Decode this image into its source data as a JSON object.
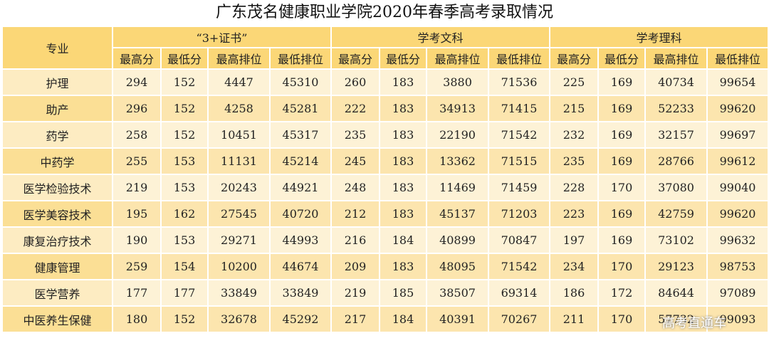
{
  "title": "广东茂名健康职业学院2020年春季高考录取情况",
  "table": {
    "corner": "专业",
    "groups": [
      {
        "name": "“3+证书”",
        "columns": [
          "最高分",
          "最低分",
          "最高排位",
          "最低排位"
        ]
      },
      {
        "name": "学考文科",
        "columns": [
          "最高分",
          "最低分",
          "最高排位",
          "最低排位"
        ]
      },
      {
        "name": "学考理科",
        "columns": [
          "最高分",
          "最低分",
          "最高排位",
          "最低排位"
        ]
      }
    ],
    "rows": [
      {
        "name": "护理",
        "values": [
          294,
          152,
          4447,
          45310,
          260,
          183,
          3880,
          71536,
          225,
          169,
          40734,
          99654
        ]
      },
      {
        "name": "助产",
        "values": [
          296,
          152,
          4258,
          45281,
          222,
          183,
          34913,
          71415,
          215,
          169,
          52233,
          99620
        ]
      },
      {
        "name": "药学",
        "values": [
          258,
          152,
          10451,
          45317,
          235,
          183,
          22190,
          71542,
          232,
          169,
          32157,
          99697
        ]
      },
      {
        "name": "中药学",
        "values": [
          255,
          153,
          11131,
          45214,
          245,
          183,
          13362,
          71515,
          235,
          169,
          28766,
          99612
        ]
      },
      {
        "name": "医学检验技术",
        "values": [
          219,
          153,
          20243,
          44921,
          248,
          183,
          11469,
          71459,
          228,
          170,
          37080,
          99040
        ]
      },
      {
        "name": "医学美容技术",
        "values": [
          195,
          162,
          27545,
          40720,
          212,
          183,
          45137,
          71203,
          223,
          169,
          42759,
          99620
        ]
      },
      {
        "name": "康复治疗技术",
        "values": [
          190,
          153,
          29271,
          44993,
          216,
          184,
          40899,
          70847,
          197,
          169,
          73102,
          99632
        ]
      },
      {
        "name": "健康管理",
        "values": [
          259,
          154,
          10200,
          44674,
          209,
          183,
          48095,
          71542,
          234,
          170,
          29123,
          98753
        ]
      },
      {
        "name": "医学营养",
        "values": [
          177,
          177,
          33849,
          33849,
          219,
          185,
          38507,
          69314,
          186,
          172,
          84644,
          97089
        ]
      },
      {
        "name": "中医养生保健",
        "values": [
          180,
          152,
          32678,
          45292,
          217,
          184,
          40391,
          70267,
          211,
          170,
          57732,
          99093
        ]
      }
    ]
  },
  "watermark": "高考直通车"
}
